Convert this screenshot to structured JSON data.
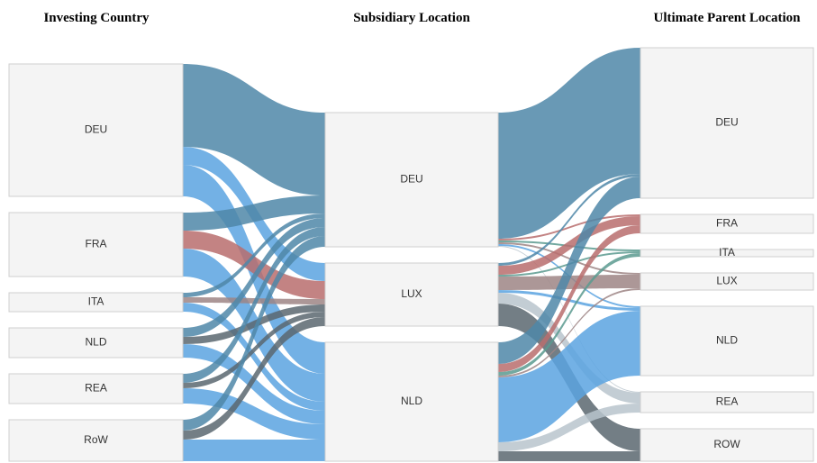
{
  "chart_data": {
    "type": "sankey",
    "columns": [
      {
        "title": "Investing Country",
        "nodes": [
          "DEU",
          "FRA",
          "ITA",
          "NLD",
          "REA",
          "RoW"
        ]
      },
      {
        "title": "Subsidiary Location",
        "nodes": [
          "DEU",
          "LUX",
          "NLD"
        ]
      },
      {
        "title": "Ultimate Parent Location",
        "nodes": [
          "DEU",
          "FRA",
          "ITA",
          "LUX",
          "NLD",
          "REA",
          "ROW"
        ]
      }
    ],
    "stages": [
      {
        "links": [
          {
            "from": "DEU",
            "to": "DEU",
            "value": 92,
            "color": "#4f87a8"
          },
          {
            "from": "DEU",
            "to": "LUX",
            "value": 20,
            "color": "#5aa3e0"
          },
          {
            "from": "DEU",
            "to": "NLD",
            "value": 35,
            "color": "#5aa3e0"
          },
          {
            "from": "FRA",
            "to": "DEU",
            "value": 20,
            "color": "#4f87a8"
          },
          {
            "from": "FRA",
            "to": "LUX",
            "value": 20,
            "color": "#b86d6d"
          },
          {
            "from": "FRA",
            "to": "NLD",
            "value": 31,
            "color": "#5aa3e0"
          },
          {
            "from": "ITA",
            "to": "DEU",
            "value": 5,
            "color": "#4f87a8"
          },
          {
            "from": "ITA",
            "to": "LUX",
            "value": 6,
            "color": "#9e8585"
          },
          {
            "from": "ITA",
            "to": "NLD",
            "value": 10,
            "color": "#5aa3e0"
          },
          {
            "from": "NLD",
            "to": "DEU",
            "value": 10,
            "color": "#4f87a8"
          },
          {
            "from": "NLD",
            "to": "LUX",
            "value": 8,
            "color": "#5a6770"
          },
          {
            "from": "NLD",
            "to": "NLD",
            "value": 15,
            "color": "#5aa3e0"
          },
          {
            "from": "REA",
            "to": "DEU",
            "value": 10,
            "color": "#4f87a8"
          },
          {
            "from": "REA",
            "to": "LUX",
            "value": 6,
            "color": "#5a6770"
          },
          {
            "from": "REA",
            "to": "NLD",
            "value": 17,
            "color": "#5aa3e0"
          },
          {
            "from": "RoW",
            "to": "DEU",
            "value": 12,
            "color": "#4f87a8"
          },
          {
            "from": "RoW",
            "to": "LUX",
            "value": 10,
            "color": "#5a6770"
          },
          {
            "from": "RoW",
            "to": "NLD",
            "value": 24,
            "color": "#5aa3e0"
          }
        ]
      },
      {
        "links": [
          {
            "from": "DEU",
            "to": "DEU",
            "value": 140,
            "color": "#4f87a8"
          },
          {
            "from": "DEU",
            "to": "FRA",
            "value": 2,
            "color": "#b86d6d"
          },
          {
            "from": "DEU",
            "to": "ITA",
            "value": 2,
            "color": "#5a9a8f"
          },
          {
            "from": "DEU",
            "to": "LUX",
            "value": 2,
            "color": "#9e8585"
          },
          {
            "from": "DEU",
            "to": "NLD",
            "value": 2,
            "color": "#5aa3e0"
          },
          {
            "from": "DEU",
            "to": "REA",
            "value": 1,
            "color": "#b9c4cc"
          },
          {
            "from": "LUX",
            "to": "DEU",
            "value": 3,
            "color": "#4f87a8"
          },
          {
            "from": "LUX",
            "to": "FRA",
            "value": 10,
            "color": "#b86d6d"
          },
          {
            "from": "LUX",
            "to": "ITA",
            "value": 2,
            "color": "#5a9a8f"
          },
          {
            "from": "LUX",
            "to": "LUX",
            "value": 15,
            "color": "#9e8585"
          },
          {
            "from": "LUX",
            "to": "NLD",
            "value": 3,
            "color": "#5aa3e0"
          },
          {
            "from": "LUX",
            "to": "REA",
            "value": 12,
            "color": "#b9c4cc"
          },
          {
            "from": "LUX",
            "to": "ROW",
            "value": 25,
            "color": "#5a6770"
          },
          {
            "from": "NLD",
            "to": "DEU",
            "value": 24,
            "color": "#4f87a8"
          },
          {
            "from": "NLD",
            "to": "FRA",
            "value": 9,
            "color": "#b86d6d"
          },
          {
            "from": "NLD",
            "to": "ITA",
            "value": 4,
            "color": "#5a9a8f"
          },
          {
            "from": "NLD",
            "to": "LUX",
            "value": 2,
            "color": "#9e8585"
          },
          {
            "from": "NLD",
            "to": "NLD",
            "value": 72,
            "color": "#5aa3e0"
          },
          {
            "from": "NLD",
            "to": "REA",
            "value": 10,
            "color": "#b9c4cc"
          },
          {
            "from": "NLD",
            "to": "ROW",
            "value": 11,
            "color": "#5a6770"
          }
        ]
      }
    ]
  }
}
